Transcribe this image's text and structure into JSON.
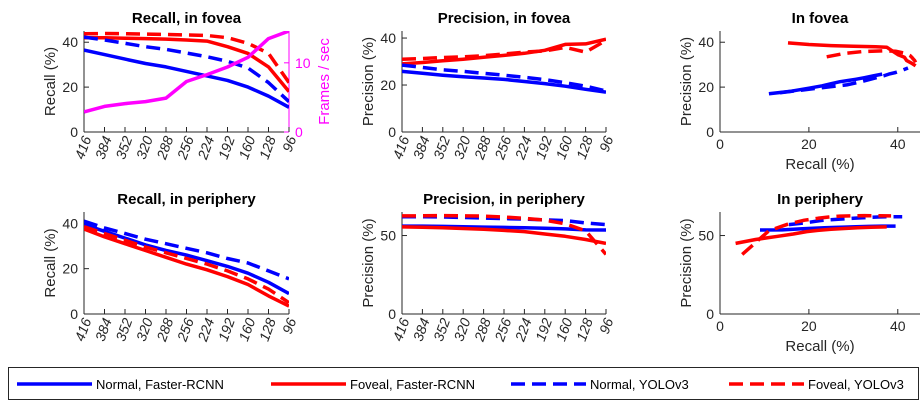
{
  "chart_data": [
    {
      "type": "line",
      "title": "Recall, in fovea",
      "ylabel": "Recall (%)",
      "ylabel_right": "Frames / sec",
      "categories": [
        "416",
        "384",
        "352",
        "320",
        "288",
        "256",
        "224",
        "192",
        "160",
        "128",
        "96"
      ],
      "ylim": [
        0,
        45
      ],
      "yticks": [
        0,
        20,
        40
      ],
      "y2lim": [
        0,
        14.6
      ],
      "y2ticks": [
        0,
        10
      ],
      "series": [
        {
          "style": "normal-frcnn",
          "values": [
            36.5,
            34.5,
            32.5,
            30.5,
            29,
            27,
            25,
            23,
            20,
            16,
            11
          ]
        },
        {
          "style": "foveal-frcnn",
          "values": [
            42,
            42,
            41.8,
            41.6,
            41.4,
            41,
            40.5,
            38,
            35,
            29,
            18
          ]
        },
        {
          "style": "normal-yolo",
          "values": [
            42.3,
            41,
            39.5,
            38,
            36.8,
            35.2,
            33.5,
            31.5,
            28.5,
            22,
            13.5
          ]
        },
        {
          "style": "foveal-yolo",
          "values": [
            43.8,
            43.9,
            43.8,
            43.6,
            43.5,
            43.2,
            43,
            42,
            39.5,
            35,
            22
          ]
        },
        {
          "style": "fps",
          "axis": "right",
          "values": [
            2.9,
            3.7,
            4.1,
            4.4,
            4.9,
            7.3,
            8.3,
            9.4,
            10.8,
            13.5,
            14.6
          ]
        }
      ]
    },
    {
      "type": "line",
      "title": "Precision, in fovea",
      "ylabel": "Precision (%)",
      "categories": [
        "416",
        "384",
        "352",
        "320",
        "288",
        "256",
        "224",
        "192",
        "160",
        "128",
        "96"
      ],
      "ylim": [
        0,
        43
      ],
      "yticks": [
        0,
        20,
        40
      ],
      "series": [
        {
          "style": "normal-frcnn",
          "values": [
            25.8,
            25,
            24.2,
            23.5,
            23,
            22.4,
            21.5,
            20.6,
            19.5,
            18.2,
            17
          ]
        },
        {
          "style": "foveal-frcnn",
          "values": [
            29,
            29.6,
            30.3,
            31,
            31.8,
            32.6,
            33.5,
            34.8,
            37.3,
            37.5,
            39.5
          ]
        },
        {
          "style": "normal-yolo",
          "values": [
            28.5,
            27.5,
            26.5,
            25.8,
            25,
            24.2,
            23.3,
            22.3,
            21,
            19.5,
            17.5
          ]
        },
        {
          "style": "foveal-yolo",
          "values": [
            31,
            31.3,
            31.7,
            32,
            32.5,
            33.2,
            34,
            34.5,
            36,
            34,
            39
          ]
        }
      ]
    },
    {
      "type": "line",
      "title": "In fovea",
      "xlabel": "Recall (%)",
      "ylabel": "Precision (%)",
      "xlim": [
        0,
        45
      ],
      "xticks": [
        0,
        20,
        40
      ],
      "ylim": [
        0,
        45
      ],
      "yticks": [
        0,
        20,
        40
      ],
      "series": [
        {
          "style": "normal-frcnn",
          "points": [
            [
              11,
              17
            ],
            [
              16,
              18.2
            ],
            [
              20,
              19.5
            ],
            [
              23,
              20.6
            ],
            [
              25,
              21.5
            ],
            [
              27,
              22.4
            ],
            [
              29,
              23
            ],
            [
              30.5,
              23.5
            ],
            [
              32.5,
              24.2
            ],
            [
              34.5,
              25
            ],
            [
              36.5,
              25.8
            ]
          ]
        },
        {
          "style": "foveal-frcnn",
          "points": [
            [
              15.3,
              39.7
            ],
            [
              20,
              39
            ],
            [
              25,
              38.5
            ],
            [
              30,
              38.2
            ],
            [
              35,
              38
            ],
            [
              37.5,
              37.8
            ],
            [
              40,
              34.5
            ],
            [
              41.5,
              33.3
            ],
            [
              42,
              31.8
            ],
            [
              43,
              30.8
            ],
            [
              44,
              29.5
            ]
          ]
        },
        {
          "style": "normal-yolo",
          "points": [
            [
              13.5,
              17.5
            ],
            [
              22,
              19.5
            ],
            [
              28.5,
              21
            ],
            [
              31.5,
              22.3
            ],
            [
              33.5,
              23.3
            ],
            [
              35.2,
              24.2
            ],
            [
              36.8,
              25
            ],
            [
              38,
              25.8
            ],
            [
              39.5,
              26.5
            ],
            [
              41,
              27.5
            ],
            [
              42.3,
              28.5
            ]
          ]
        },
        {
          "style": "foveal-yolo",
          "points": [
            [
              24,
              33.5
            ],
            [
              28,
              35
            ],
            [
              32,
              35.8
            ],
            [
              37,
              36.2
            ],
            [
              39.5,
              36
            ],
            [
              41.8,
              35
            ],
            [
              42.8,
              34
            ],
            [
              43.2,
              33.2
            ],
            [
              43.5,
              32.5
            ],
            [
              43.8,
              31.8
            ],
            [
              44,
              31
            ]
          ]
        }
      ]
    },
    {
      "type": "line",
      "title": "Recall, in periphery",
      "ylabel": "Recall (%)",
      "categories": [
        "416",
        "384",
        "352",
        "320",
        "288",
        "256",
        "224",
        "192",
        "160",
        "128",
        "96"
      ],
      "ylim": [
        0,
        45
      ],
      "yticks": [
        0,
        20,
        40
      ],
      "series": [
        {
          "style": "normal-frcnn",
          "values": [
            39.5,
            36.5,
            33.5,
            30.5,
            28,
            26,
            23.5,
            21,
            18,
            14,
            9
          ]
        },
        {
          "style": "foveal-frcnn",
          "values": [
            37.5,
            34,
            31,
            28,
            25,
            22,
            19.5,
            16.5,
            13,
            8,
            3.5
          ]
        },
        {
          "style": "normal-yolo",
          "values": [
            41,
            38,
            35.5,
            33,
            31,
            29,
            27,
            24.5,
            22.5,
            19,
            15.5
          ]
        },
        {
          "style": "foveal-yolo",
          "values": [
            38.5,
            35.5,
            32.5,
            29.5,
            27,
            24.5,
            22,
            19,
            15.5,
            11,
            5
          ]
        }
      ]
    },
    {
      "type": "line",
      "title": "Precision, in periphery",
      "ylabel": "Precision (%)",
      "categories": [
        "416",
        "384",
        "352",
        "320",
        "288",
        "256",
        "224",
        "192",
        "160",
        "128",
        "96"
      ],
      "ylim": [
        0,
        65
      ],
      "yticks": [
        0,
        50
      ],
      "series": [
        {
          "style": "normal-frcnn",
          "values": [
            56,
            56,
            55.8,
            55.6,
            55.4,
            55.2,
            55,
            54.6,
            54.2,
            53.6,
            53.5
          ]
        },
        {
          "style": "foveal-frcnn",
          "values": [
            55.5,
            55.3,
            55,
            54.5,
            54,
            53.3,
            52.5,
            51,
            49.5,
            47.5,
            45
          ]
        },
        {
          "style": "normal-yolo",
          "values": [
            62,
            62,
            61.8,
            61.5,
            61.2,
            60.8,
            60.5,
            60,
            59.5,
            58,
            57
          ]
        },
        {
          "style": "foveal-yolo",
          "values": [
            62.5,
            62.6,
            62.7,
            62.6,
            62.4,
            61.8,
            61,
            59.8,
            57.5,
            53,
            38
          ]
        }
      ]
    },
    {
      "type": "line",
      "title": "In periphery",
      "xlabel": "Recall (%)",
      "ylabel": "Precision (%)",
      "xlim": [
        0,
        45
      ],
      "xticks": [
        0,
        20,
        40
      ],
      "ylim": [
        0,
        65
      ],
      "yticks": [
        0,
        50
      ],
      "series": [
        {
          "style": "normal-frcnn",
          "points": [
            [
              9,
              53.5
            ],
            [
              14,
              53.6
            ],
            [
              18,
              54.2
            ],
            [
              21,
              54.6
            ],
            [
              23.5,
              55
            ],
            [
              26,
              55.2
            ],
            [
              28,
              55.4
            ],
            [
              30.5,
              55.6
            ],
            [
              33.5,
              55.8
            ],
            [
              36.5,
              56
            ],
            [
              39.5,
              56
            ]
          ]
        },
        {
          "style": "foveal-frcnn",
          "points": [
            [
              3.5,
              45
            ],
            [
              8,
              47.5
            ],
            [
              13,
              49.5
            ],
            [
              16.5,
              51
            ],
            [
              19.5,
              52.5
            ],
            [
              22,
              53.3
            ],
            [
              25,
              54
            ],
            [
              28,
              54.5
            ],
            [
              31,
              55
            ],
            [
              34,
              55.3
            ],
            [
              37.5,
              55.5
            ]
          ]
        },
        {
          "style": "normal-yolo",
          "points": [
            [
              15.5,
              57
            ],
            [
              19,
              58
            ],
            [
              22.5,
              59.5
            ],
            [
              24.5,
              60
            ],
            [
              27,
              60.5
            ],
            [
              29,
              60.8
            ],
            [
              31,
              61.2
            ],
            [
              33,
              61.5
            ],
            [
              35.5,
              61.8
            ],
            [
              38,
              62
            ],
            [
              41,
              62
            ]
          ]
        },
        {
          "style": "foveal-yolo",
          "points": [
            [
              5,
              38
            ],
            [
              11,
              53
            ],
            [
              15.5,
              57.5
            ],
            [
              19,
              59.8
            ],
            [
              22,
              61
            ],
            [
              24.5,
              61.8
            ],
            [
              27,
              62.4
            ],
            [
              29.5,
              62.6
            ],
            [
              32.5,
              62.7
            ],
            [
              35.5,
              62.6
            ],
            [
              38.5,
              62.5
            ]
          ]
        }
      ]
    }
  ],
  "legend": [
    {
      "style": "normal-frcnn",
      "label": "Normal, Faster-RCNN"
    },
    {
      "style": "foveal-frcnn",
      "label": "Foveal, Faster-RCNN"
    },
    {
      "style": "normal-yolo",
      "label": "Normal, YOLOv3"
    },
    {
      "style": "foveal-yolo",
      "label": "Foveal, YOLOv3"
    }
  ],
  "colors": {
    "blue": "#0000ff",
    "red": "#ff0000",
    "magenta": "#ff00ff",
    "axis": "#262626"
  }
}
